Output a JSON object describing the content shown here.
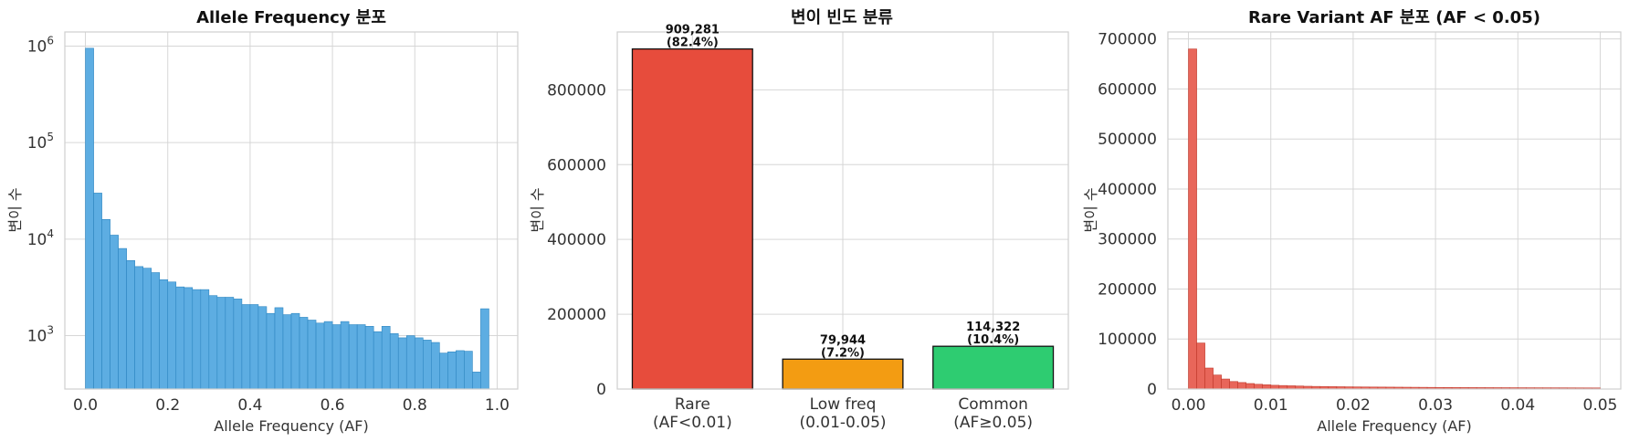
{
  "chart_data": [
    {
      "type": "bar",
      "subtype": "histogram",
      "title": "Allele Frequency 분포",
      "xlabel": "Allele Frequency (AF)",
      "ylabel": "변이 수",
      "yscale": "log",
      "xlim": [
        -0.05,
        1.05
      ],
      "ylim": [
        280,
        1400000
      ],
      "x_ticks": [
        "0.0",
        "0.2",
        "0.4",
        "0.6",
        "0.8",
        "1.0"
      ],
      "y_ticks": [
        {
          "base": "10",
          "exp": "3",
          "value": 1000
        },
        {
          "base": "10",
          "exp": "4",
          "value": 10000
        },
        {
          "base": "10",
          "exp": "5",
          "value": 100000
        },
        {
          "base": "10",
          "exp": "6",
          "value": 1000000
        }
      ],
      "bin_start": 0.0,
      "bin_width": 0.02,
      "color": "#5dade2",
      "edge_color": "#2e86c1",
      "grid": true,
      "values": [
        950000,
        30000,
        16000,
        11000,
        8000,
        6000,
        5200,
        5000,
        4500,
        3800,
        3600,
        3200,
        3150,
        3000,
        3000,
        2600,
        2500,
        2500,
        2400,
        2100,
        2100,
        2000,
        1700,
        1950,
        1650,
        1700,
        1550,
        1450,
        1350,
        1400,
        1300,
        1400,
        1300,
        1300,
        1250,
        1100,
        1250,
        1050,
        950,
        1000,
        950,
        900,
        850,
        660,
        680,
        700,
        690,
        420,
        1900
      ]
    },
    {
      "type": "bar",
      "title": "변이 빈도 분류",
      "xlabel": "",
      "ylabel": "변이 수",
      "ylim": [
        0,
        954745
      ],
      "y_ticks": [
        0,
        200000,
        400000,
        600000,
        800000
      ],
      "categories": [
        {
          "line1": "Rare",
          "line2": "(AF<0.01)"
        },
        {
          "line1": "Low freq",
          "line2": "(0.01-0.05)"
        },
        {
          "line1": "Common",
          "line2": "(AF≥0.05)"
        }
      ],
      "values": [
        909281,
        79944,
        114322
      ],
      "labels": [
        {
          "count": "909,281",
          "pct": "(82.4%)"
        },
        {
          "count": "79,944",
          "pct": "(7.2%)"
        },
        {
          "count": "114,322",
          "pct": "(10.4%)"
        }
      ],
      "colors": [
        "#e74c3c",
        "#f39c12",
        "#2ecc71"
      ],
      "grid": true
    },
    {
      "type": "bar",
      "subtype": "histogram",
      "title": "Rare Variant AF 분포 (AF < 0.05)",
      "xlabel": "Allele Frequency (AF)",
      "ylabel": "변이 수",
      "xlim": [
        -0.0025,
        0.0525
      ],
      "ylim": [
        0,
        714000
      ],
      "x_ticks": [
        "0.00",
        "0.01",
        "0.02",
        "0.03",
        "0.04",
        "0.05"
      ],
      "y_ticks": [
        0,
        100000,
        200000,
        300000,
        400000,
        500000,
        600000,
        700000
      ],
      "bin_start": 0.0,
      "bin_width": 0.001,
      "color": "#e8665a",
      "edge_color": "#c0392b",
      "grid": true,
      "values": [
        680000,
        92000,
        42000,
        28000,
        20000,
        15000,
        13000,
        11000,
        9500,
        8500,
        7500,
        7000,
        6500,
        6000,
        5500,
        5200,
        5000,
        4800,
        4600,
        4400,
        4200,
        4100,
        4000,
        3900,
        3800,
        3700,
        3600,
        3500,
        3400,
        3300,
        3200,
        3100,
        3000,
        2950,
        2900,
        2850,
        2800,
        2750,
        2700,
        2650,
        2600,
        2550,
        2500,
        2450,
        2400,
        2350,
        2300,
        2250,
        2200,
        2150
      ]
    }
  ]
}
